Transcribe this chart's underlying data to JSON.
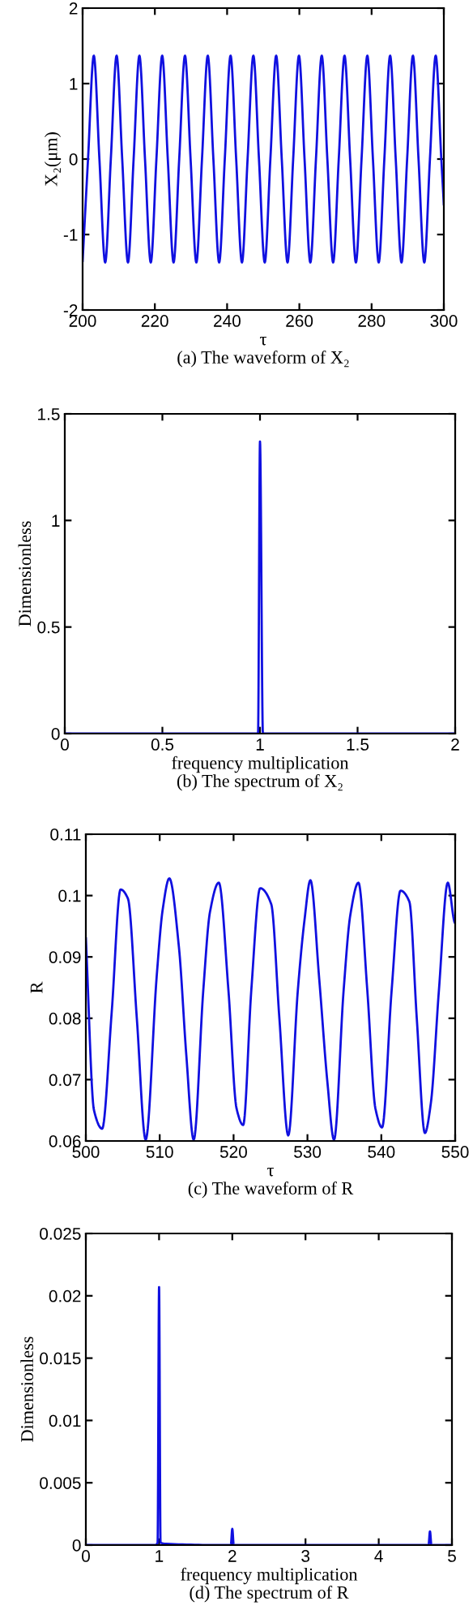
{
  "chart_data": [
    {
      "type": "line",
      "xlabel": "τ",
      "ylabel": "X₂(μm)",
      "annotations": [
        "(a) The waveform of X₂"
      ],
      "xlim": [
        200,
        300
      ],
      "xticks": [
        200,
        220,
        240,
        260,
        280,
        300
      ],
      "ylim": [
        -2,
        2
      ],
      "yticks": [
        -2,
        -1,
        0,
        1,
        2
      ],
      "x": [
        200,
        201.5,
        203.1,
        204.65,
        206.25,
        207.81,
        209.41,
        210.96,
        212.56,
        214.12,
        215.72,
        217.27,
        218.87,
        220.43,
        222.03,
        223.58,
        225.18,
        226.74,
        228.34,
        229.89,
        231.49,
        233.05,
        234.65,
        236.2,
        237.8,
        239.36,
        240.96,
        242.51,
        244.11,
        245.67,
        247.27,
        248.82,
        250.42,
        251.98,
        253.58,
        255.13,
        256.73,
        258.29,
        259.89,
        261.44,
        263.04,
        264.6,
        266.2,
        267.75,
        269.35,
        270.91,
        272.51,
        274.06,
        275.66,
        277.22,
        278.82,
        280.37,
        281.97,
        283.53,
        285.13,
        286.68,
        288.28,
        289.84,
        291.44,
        292.99,
        294.59,
        296.15,
        297.75,
        299.3,
        300
      ],
      "series": [
        {
          "color": "#1010e0",
          "values": [
            -1.35,
            0,
            1.37,
            0,
            -1.37,
            0,
            1.37,
            0,
            -1.37,
            0,
            1.37,
            0,
            -1.37,
            0,
            1.37,
            0,
            -1.37,
            0,
            1.37,
            0,
            -1.37,
            0,
            1.37,
            0,
            -1.37,
            0,
            1.37,
            0,
            -1.37,
            0,
            1.37,
            0,
            -1.37,
            0,
            1.37,
            0,
            -1.37,
            0,
            1.37,
            0,
            -1.37,
            0,
            1.37,
            0,
            -1.37,
            0,
            1.37,
            0,
            -1.37,
            0,
            1.37,
            0,
            -1.37,
            0,
            1.37,
            0,
            -1.37,
            0,
            1.37,
            0,
            -1.37,
            0,
            1.37,
            0,
            -0.6
          ]
        }
      ]
    },
    {
      "type": "line",
      "xlabel": "frequency multiplication",
      "ylabel": "Dimensionless",
      "annotations": [
        "(b) The spectrum of X₂"
      ],
      "xlim": [
        0,
        2
      ],
      "xticks": [
        0,
        0.5,
        1,
        1.5,
        2
      ],
      "ylim": [
        0,
        1.5
      ],
      "yticks": [
        0,
        0.5,
        1,
        1.5
      ],
      "x": [
        0,
        0.99,
        1.0,
        1.015,
        2
      ],
      "series": [
        {
          "color": "#1010e0",
          "values": [
            0,
            0,
            1.37,
            0,
            0
          ]
        }
      ]
    },
    {
      "type": "line",
      "xlabel": "τ",
      "ylabel": "R",
      "annotations": [
        "(c) The waveform of R"
      ],
      "xlim": [
        500,
        550
      ],
      "xticks": [
        500,
        510,
        520,
        530,
        540,
        550
      ],
      "ylim": [
        0.06,
        0.11
      ],
      "yticks": [
        0.06,
        0.07,
        0.08,
        0.09,
        0.1,
        0.11
      ],
      "x": [
        500,
        501.1,
        502.2,
        503.5,
        504.7,
        505.7,
        506.9,
        508.1,
        509.6,
        510.4,
        511.3,
        512.6,
        513.6,
        514.6,
        515.9,
        516.8,
        518.0,
        519.3,
        520.4,
        521.3,
        522.4,
        523.6,
        525.1,
        526.2,
        527.4,
        528.7,
        529.6,
        530.4,
        531.6,
        532.7,
        533.6,
        534.9,
        535.8,
        536.9,
        538.1,
        539.2,
        540.1,
        541.4,
        542.6,
        543.8,
        544.8,
        545.9,
        546.7,
        547.8,
        549.0,
        550
      ],
      "series": [
        {
          "color": "#1010e0",
          "values": [
            0.093,
            0.065,
            0.062,
            0.081,
            0.101,
            0.0995,
            0.08,
            0.0602,
            0.087,
            0.0977,
            0.1028,
            0.0916,
            0.074,
            0.0602,
            0.0846,
            0.0973,
            0.1021,
            0.0846,
            0.0653,
            0.0626,
            0.0846,
            0.1012,
            0.0986,
            0.08,
            0.0609,
            0.0846,
            0.096,
            0.1025,
            0.0863,
            0.0696,
            0.0602,
            0.0846,
            0.0968,
            0.1021,
            0.0846,
            0.0653,
            0.0622,
            0.0846,
            0.1008,
            0.099,
            0.08,
            0.0613,
            0.0661,
            0.0846,
            0.1021,
            0.0955
          ]
        }
      ]
    },
    {
      "type": "line",
      "xlabel": "frequency multiplication",
      "ylabel": "Dimensionless",
      "annotations": [
        "(d) The spectrum of R"
      ],
      "xlim": [
        0,
        5
      ],
      "xticks": [
        0,
        1,
        2,
        3,
        4,
        5
      ],
      "ylim": [
        0,
        0.025
      ],
      "yticks": [
        0,
        0.005,
        0.01,
        0.015,
        0.02,
        0.025
      ],
      "x": [
        0,
        0.95,
        0.98,
        1.0,
        1.02,
        1.1,
        1.98,
        2.0,
        2.02,
        4.68,
        4.7,
        4.72,
        5
      ],
      "series": [
        {
          "color": "#1010e0",
          "values": [
            0,
            0,
            0.0002,
            0.0207,
            0.0002,
            0.0001,
            0,
            0.0013,
            0,
            0,
            0.0011,
            0,
            0
          ]
        }
      ]
    }
  ]
}
